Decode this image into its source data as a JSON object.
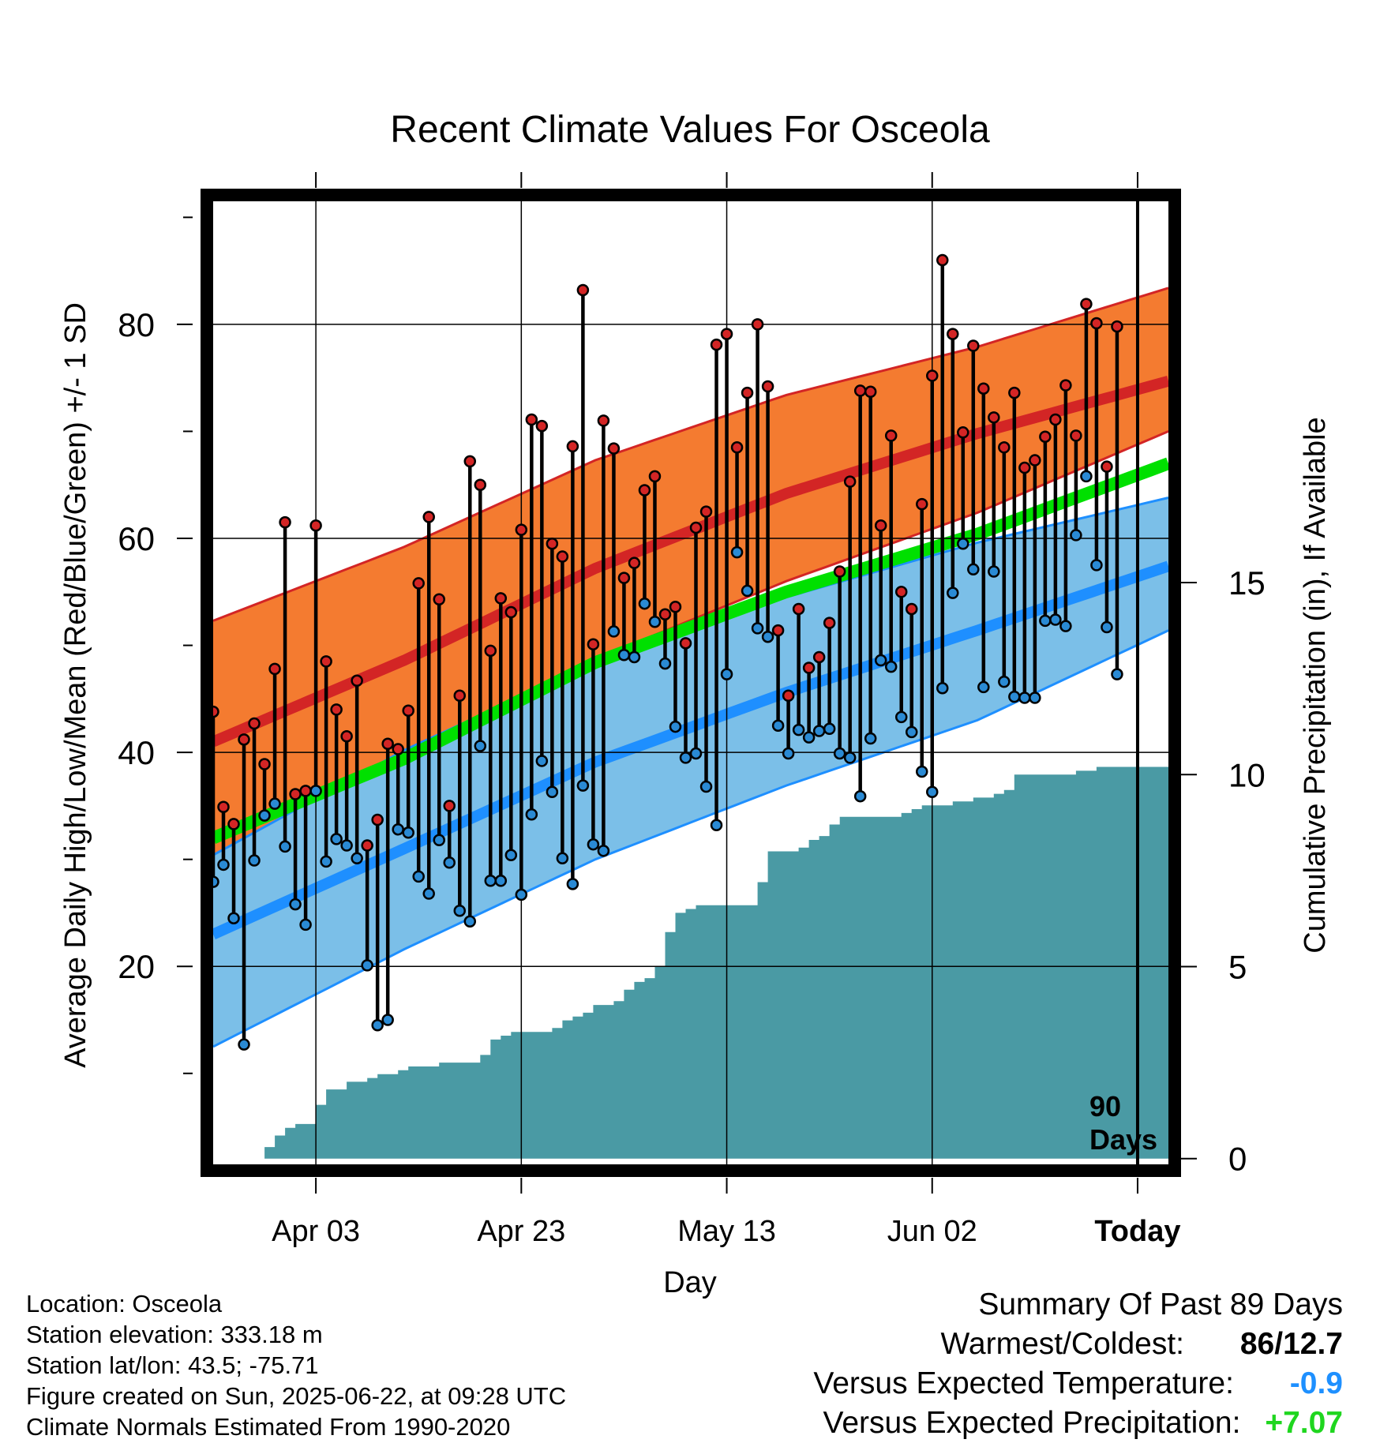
{
  "chart_data": {
    "type": "line",
    "title": "Recent Climate Values For Osceola",
    "xlabel": "Day",
    "ylabel_left": "Average Daily High/Low/Mean (Red/Blue/Green) +/- 1 SD",
    "ylabel_right": "Cumulative Precipitation (in), If Available",
    "x_start": "2025-03-24",
    "x_end": "2025-06-25",
    "today": "2025-06-22",
    "x_tick_labels": [
      {
        "date": "2025-04-03",
        "label": "Apr 03"
      },
      {
        "date": "2025-04-23",
        "label": "Apr 23"
      },
      {
        "date": "2025-05-13",
        "label": "May 13"
      },
      {
        "date": "2025-06-02",
        "label": "Jun 02"
      },
      {
        "date": "2025-06-22",
        "label": "Today"
      }
    ],
    "ylim_left": [
      1.5,
      91.5
    ],
    "yticks_left": [
      20,
      40,
      60,
      80
    ],
    "ylim_right": [
      -0.15,
      24.93
    ],
    "yticks_right": [
      0,
      5,
      10,
      15
    ],
    "grid": true,
    "period_label": [
      "90",
      "Days"
    ],
    "colors": {
      "high_band": "#f47b30",
      "high_line": "#d32525",
      "low_band": "#7bbfe8",
      "low_line": "#1e8fff",
      "mean_line": "#00e000",
      "precip": "#4a9aa4",
      "high_point": "#d32525",
      "low_point": "#2a8ad4"
    },
    "normal_high_mean": [
      [
        0,
        41.0
      ],
      [
        20,
        48.6
      ],
      [
        40,
        57.2
      ],
      [
        60,
        64.2
      ],
      [
        80,
        69.8
      ],
      [
        100,
        74.7
      ]
    ],
    "normal_high_upper": [
      [
        0,
        52.3
      ],
      [
        20,
        59.2
      ],
      [
        40,
        67.3
      ],
      [
        60,
        73.4
      ],
      [
        80,
        77.9
      ],
      [
        100,
        83.4
      ]
    ],
    "normal_high_lower": [
      [
        0,
        30.0
      ],
      [
        20,
        39.2
      ],
      [
        40,
        48.7
      ],
      [
        60,
        56.0
      ],
      [
        80,
        62.4
      ],
      [
        100,
        70.0
      ]
    ],
    "normal_low_mean": [
      [
        0,
        23.0
      ],
      [
        20,
        31.0
      ],
      [
        40,
        39.1
      ],
      [
        60,
        45.6
      ],
      [
        80,
        51.4
      ],
      [
        100,
        57.4
      ]
    ],
    "normal_low_upper": [
      [
        0,
        30.4
      ],
      [
        20,
        40.2
      ],
      [
        40,
        48.4
      ],
      [
        60,
        54.5
      ],
      [
        80,
        59.6
      ],
      [
        100,
        63.8
      ]
    ],
    "normal_low_lower": [
      [
        0,
        12.5
      ],
      [
        20,
        21.6
      ],
      [
        40,
        30.0
      ],
      [
        60,
        36.9
      ],
      [
        80,
        43.0
      ],
      [
        100,
        51.4
      ]
    ],
    "normal_mean": [
      [
        0,
        32.0
      ],
      [
        20,
        39.4
      ],
      [
        40,
        48.4
      ],
      [
        60,
        55.0
      ],
      [
        80,
        60.4
      ],
      [
        100,
        67.0
      ]
    ],
    "daily_high": [
      43.8,
      34.9,
      33.3,
      41.2,
      42.7,
      38.9,
      47.8,
      61.5,
      36.1,
      36.4,
      61.2,
      48.5,
      44.0,
      41.5,
      46.7,
      31.3,
      33.7,
      40.8,
      40.3,
      43.9,
      55.8,
      62.0,
      54.3,
      35.0,
      45.3,
      67.2,
      65.0,
      49.5,
      54.4,
      53.1,
      60.8,
      71.1,
      70.5,
      59.5,
      58.3,
      68.6,
      83.2,
      50.1,
      71.0,
      68.4,
      56.3,
      57.7,
      64.5,
      65.8,
      52.9,
      53.6,
      50.2,
      61.0,
      62.5,
      78.1,
      79.1,
      68.5,
      73.6,
      80.0,
      74.2,
      51.4,
      45.3,
      53.4,
      47.9,
      48.9,
      52.1,
      56.9,
      65.3,
      73.8,
      73.7,
      61.2,
      69.6,
      55.0,
      53.4,
      63.2,
      75.2,
      86.0,
      79.1,
      69.9,
      78.0,
      74.0,
      71.3,
      68.5,
      73.6,
      66.6,
      67.3,
      69.5,
      71.1,
      74.3,
      69.6,
      81.9,
      80.1,
      66.7,
      79.8
    ],
    "daily_low": [
      27.9,
      29.5,
      24.5,
      12.7,
      29.9,
      34.1,
      35.2,
      31.2,
      25.8,
      23.9,
      36.4,
      29.8,
      31.9,
      31.3,
      30.1,
      20.1,
      14.5,
      15.0,
      32.8,
      32.5,
      28.4,
      26.8,
      31.8,
      29.7,
      25.2,
      24.2,
      40.6,
      28.0,
      28.0,
      30.4,
      26.7,
      34.2,
      39.2,
      36.3,
      30.1,
      27.7,
      36.9,
      31.4,
      30.8,
      51.3,
      49.1,
      48.9,
      53.9,
      52.2,
      48.3,
      42.4,
      39.5,
      39.9,
      36.8,
      33.2,
      47.3,
      58.7,
      55.1,
      51.6,
      50.8,
      42.5,
      39.9,
      42.1,
      41.4,
      42.0,
      42.2,
      39.9,
      39.5,
      35.9,
      41.3,
      48.6,
      48.0,
      43.3,
      41.9,
      38.2,
      36.3,
      46.0,
      54.9,
      59.5,
      57.1,
      46.1,
      56.9,
      46.6,
      45.2,
      45.1,
      45.1,
      52.3,
      52.4,
      51.8,
      60.3,
      65.8,
      57.5,
      51.7,
      47.3
    ],
    "cumulative_precip": [
      [
        0,
        0.0
      ],
      [
        4,
        0.0
      ],
      [
        5,
        0.3
      ],
      [
        6,
        0.6
      ],
      [
        7,
        0.8
      ],
      [
        8,
        0.9
      ],
      [
        9,
        0.9
      ],
      [
        10,
        1.4
      ],
      [
        11,
        1.8
      ],
      [
        12,
        1.8
      ],
      [
        13,
        2.0
      ],
      [
        14,
        2.0
      ],
      [
        15,
        2.1
      ],
      [
        16,
        2.2
      ],
      [
        17,
        2.2
      ],
      [
        18,
        2.3
      ],
      [
        19,
        2.4
      ],
      [
        20,
        2.4
      ],
      [
        21,
        2.4
      ],
      [
        22,
        2.5
      ],
      [
        23,
        2.5
      ],
      [
        24,
        2.5
      ],
      [
        25,
        2.5
      ],
      [
        26,
        2.7
      ],
      [
        27,
        3.1
      ],
      [
        28,
        3.2
      ],
      [
        29,
        3.3
      ],
      [
        30,
        3.3
      ],
      [
        31,
        3.3
      ],
      [
        32,
        3.3
      ],
      [
        33,
        3.4
      ],
      [
        34,
        3.6
      ],
      [
        35,
        3.7
      ],
      [
        36,
        3.8
      ],
      [
        37,
        4.0
      ],
      [
        38,
        4.0
      ],
      [
        39,
        4.1
      ],
      [
        40,
        4.4
      ],
      [
        41,
        4.6
      ],
      [
        42,
        4.7
      ],
      [
        43,
        5.0
      ],
      [
        44,
        5.9
      ],
      [
        45,
        6.4
      ],
      [
        46,
        6.5
      ],
      [
        47,
        6.6
      ],
      [
        48,
        6.6
      ],
      [
        49,
        6.6
      ],
      [
        50,
        6.6
      ],
      [
        51,
        6.6
      ],
      [
        52,
        6.6
      ],
      [
        53,
        7.2
      ],
      [
        54,
        8.0
      ],
      [
        55,
        8.0
      ],
      [
        56,
        8.0
      ],
      [
        57,
        8.1
      ],
      [
        58,
        8.3
      ],
      [
        59,
        8.4
      ],
      [
        60,
        8.7
      ],
      [
        61,
        8.9
      ],
      [
        62,
        8.9
      ],
      [
        63,
        8.9
      ],
      [
        64,
        8.9
      ],
      [
        65,
        8.9
      ],
      [
        66,
        8.9
      ],
      [
        67,
        9.0
      ],
      [
        68,
        9.1
      ],
      [
        69,
        9.2
      ],
      [
        70,
        9.2
      ],
      [
        71,
        9.2
      ],
      [
        72,
        9.3
      ],
      [
        73,
        9.3
      ],
      [
        74,
        9.4
      ],
      [
        75,
        9.4
      ],
      [
        76,
        9.5
      ],
      [
        77,
        9.6
      ],
      [
        78,
        10.0
      ],
      [
        79,
        10.0
      ],
      [
        80,
        10.0
      ],
      [
        81,
        10.0
      ],
      [
        82,
        10.0
      ],
      [
        83,
        10.0
      ],
      [
        84,
        10.1
      ],
      [
        85,
        10.1
      ],
      [
        86,
        10.2
      ],
      [
        87,
        10.2
      ],
      [
        88,
        10.2
      ],
      [
        89,
        10.2
      ],
      [
        100,
        10.2
      ]
    ]
  },
  "info": {
    "location": "Location: Osceola",
    "elevation": "Station elevation: 333.18 m",
    "latlon": "Station lat/lon: 43.5; -75.71",
    "created": "Figure created on Sun, 2025-06-22, at 09:28 UTC",
    "normals": "Climate Normals Estimated From 1990-2020"
  },
  "summary": {
    "heading": "Summary Of Past 89 Days",
    "warm_cold_label": "Warmest/Coldest:",
    "warm_value": "86",
    "cold_value": "12.7",
    "temp_label": "Versus Expected Temperature:",
    "temp_value": "-0.9",
    "precip_label": "Versus Expected Precipitation:",
    "precip_value": "+7.07"
  }
}
